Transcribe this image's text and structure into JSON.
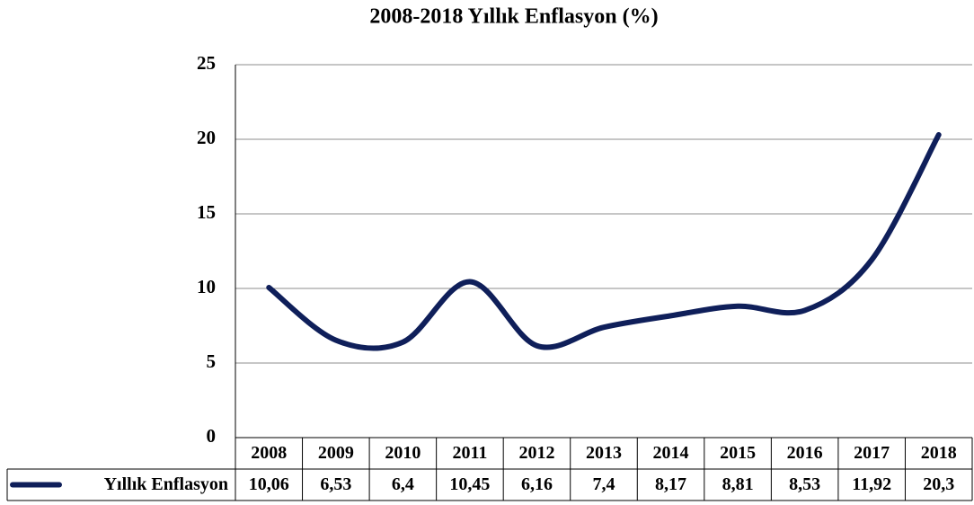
{
  "chart_data": {
    "type": "line",
    "title": "2008-2018 Yıllık Enflasyon (%)",
    "categories": [
      "2008",
      "2009",
      "2010",
      "2011",
      "2012",
      "2013",
      "2014",
      "2015",
      "2016",
      "2017",
      "2018"
    ],
    "series": [
      {
        "name": "Yıllık Enflasyon",
        "color": "#0f1f5a",
        "values": [
          10.06,
          6.53,
          6.4,
          10.45,
          6.16,
          7.4,
          8.17,
          8.81,
          8.53,
          11.92,
          20.3
        ],
        "value_labels": [
          "10,06",
          "6,53",
          "6,4",
          "10,45",
          "6,16",
          "7,4",
          "8,17",
          "8,81",
          "8,53",
          "11,92",
          "20,3"
        ]
      }
    ],
    "ylim": [
      0,
      25
    ],
    "yticks": [
      0,
      5,
      10,
      15,
      20,
      25
    ],
    "grid": true,
    "smooth": true
  }
}
